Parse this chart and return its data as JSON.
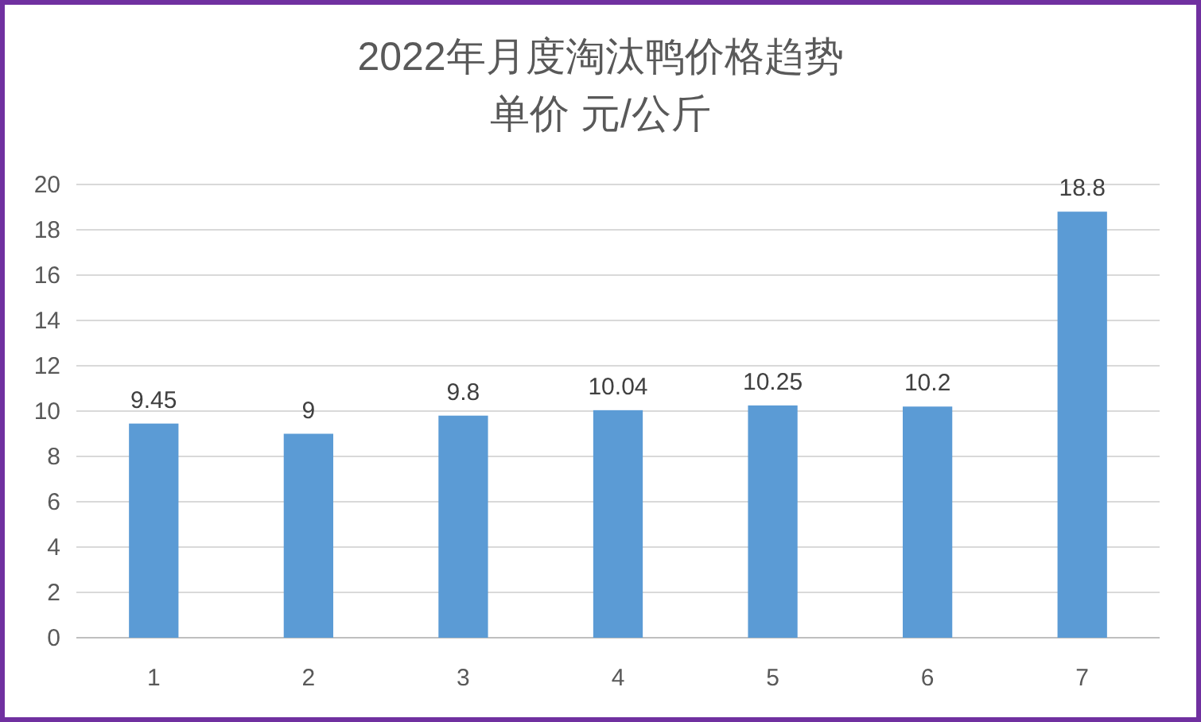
{
  "chart_data": {
    "type": "bar",
    "title": "2022年月度淘汰鸭价格趋势",
    "subtitle": "单价 元/公斤",
    "categories": [
      "1",
      "2",
      "3",
      "4",
      "5",
      "6",
      "7"
    ],
    "values": [
      9.45,
      9,
      9.8,
      10.04,
      10.25,
      10.2,
      18.8
    ],
    "color": "#5b9bd5",
    "ylim": [
      0,
      20
    ],
    "yticks": [
      0,
      2,
      4,
      6,
      8,
      10,
      12,
      14,
      16,
      18,
      20
    ],
    "grid": "y",
    "data_labels": true
  }
}
